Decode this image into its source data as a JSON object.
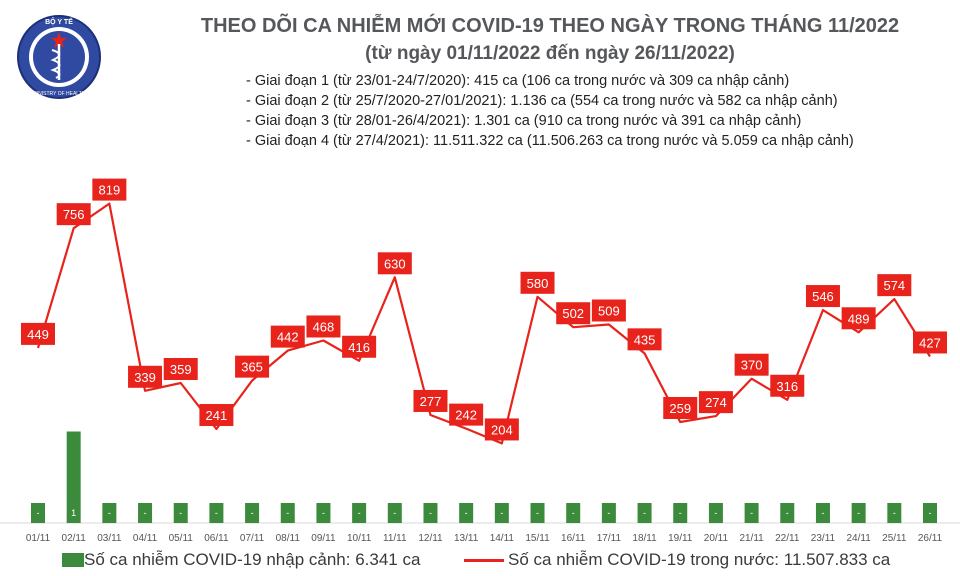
{
  "header": {
    "title_line1": "THEO DÕI CA NHIỄM MỚI COVID-19 THEO NGÀY TRONG THÁNG 11/2022",
    "title_line2": "(từ ngày 01/11/2022 đến ngày 26/11/2022)"
  },
  "logo": {
    "text_top": "BỘ Y TẾ",
    "text_bottom": "MINISTRY OF HEALTH"
  },
  "info": [
    "- Giai đoạn 1 (từ 23/01-24/7/2020): 415 ca (106 ca trong nước và 309 ca nhập cảnh)",
    "- Giai đoạn 2 (từ 25/7/2020-27/01/2021): 1.136 ca (554 ca trong nước và 582 ca nhập cảnh)",
    "- Giai đoạn 3 (từ 28/01-26/4/2021): 1.301 ca (910 ca trong nước và 391 ca nhập cảnh)",
    "- Giai đoạn 4 (từ 27/4/2021): 11.511.322 ca (11.506.263 ca trong nước và 5.059 ca nhập cảnh)"
  ],
  "legend": {
    "import": "Số ca nhiễm COVID-19 nhập cảnh: 6.341 ca",
    "domestic": "Số ca nhiễm COVID-19 trong nước: 11.507.833 ca"
  },
  "colors": {
    "line": "#e8231b",
    "bar": "#3c8b3c",
    "label_bg": "#e8231b",
    "title": "#55575b"
  },
  "chart_data": {
    "type": "bar+line",
    "categories": [
      "01/11",
      "02/11",
      "03/11",
      "04/11",
      "05/11",
      "06/11",
      "07/11",
      "08/11",
      "09/11",
      "10/11",
      "11/11",
      "12/11",
      "13/11",
      "14/11",
      "15/11",
      "16/11",
      "17/11",
      "18/11",
      "19/11",
      "20/11",
      "21/11",
      "22/11",
      "23/11",
      "24/11",
      "25/11",
      "26/11"
    ],
    "series": [
      {
        "name": "Số ca nhiễm COVID-19 trong nước: 11.507.833 ca",
        "kind": "line",
        "values": [
          449,
          756,
          819,
          339,
          359,
          241,
          365,
          442,
          468,
          416,
          630,
          277,
          242,
          204,
          580,
          502,
          509,
          435,
          259,
          274,
          370,
          316,
          546,
          489,
          574,
          427
        ]
      },
      {
        "name": "Số ca nhiễm COVID-19 nhập cảnh: 6.341 ca",
        "kind": "bar",
        "values": [
          0,
          1,
          0,
          0,
          0,
          0,
          0,
          0,
          0,
          0,
          0,
          0,
          0,
          0,
          0,
          0,
          0,
          0,
          0,
          0,
          0,
          0,
          0,
          0,
          0,
          0
        ],
        "bar_labels": [
          "-",
          "1",
          "-",
          "-",
          "-",
          "-",
          "-",
          "-",
          "-",
          "-",
          "-",
          "-",
          "-",
          "-",
          "-",
          "-",
          "-",
          "-",
          "-",
          "-",
          "-",
          "-",
          "-",
          "-",
          "-",
          "-"
        ]
      }
    ],
    "line_ylim": [
      0,
      1000
    ],
    "bar_ylim": [
      0,
      4
    ],
    "grid": false
  }
}
